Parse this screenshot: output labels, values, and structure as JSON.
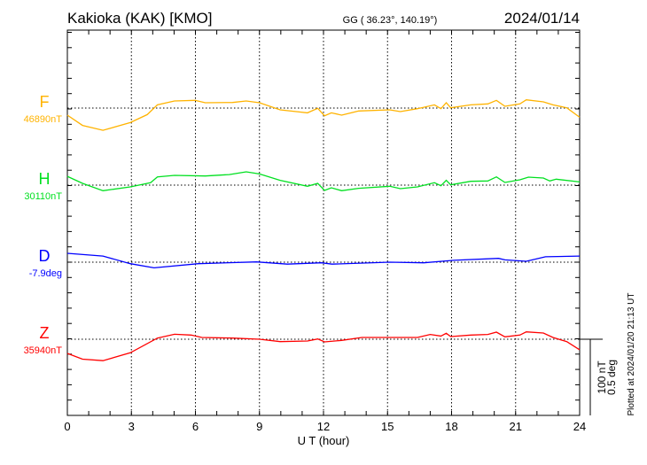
{
  "header": {
    "station": "Kakioka (KAK)  [KMO]",
    "coords": "GG ( 36.23°, 140.19°)",
    "date": "2024/01/14"
  },
  "footer": {
    "plotted": "Plotted at 2024/01/20 21:13 UT",
    "scale_nt": "100 nT",
    "scale_deg": "0.5 deg"
  },
  "chart_data": {
    "type": "line",
    "xlabel": "U T (hour)",
    "xlim": [
      0,
      24
    ],
    "xticks": [
      "0",
      "3",
      "6",
      "9",
      "12",
      "15",
      "18",
      "21",
      "24"
    ],
    "scale": {
      "nT_per_bar": 100,
      "deg_per_bar": 0.5
    },
    "grid": "dotted at every 3 hours and at each baseline",
    "series": [
      {
        "name": "F",
        "baseline_label": "46890nT",
        "unit": "nT",
        "color": "#ffb300",
        "x": [
          0,
          0.71,
          1.67,
          2.95,
          3.74,
          4.22,
          5.02,
          5.98,
          6.46,
          7.74,
          8.38,
          9.0,
          9.97,
          11.25,
          11.73,
          12.05,
          12.37,
          12.85,
          13.65,
          15.1,
          15.6,
          16.4,
          17.2,
          17.5,
          17.75,
          17.96,
          18.9,
          19.7,
          20.1,
          20.5,
          21.2,
          21.5,
          22.3,
          22.75,
          23.4,
          24
        ],
        "y": [
          -9.2,
          -22.7,
          -29,
          -19,
          -8.5,
          4.2,
          9.2,
          10,
          6.9,
          7.3,
          9.2,
          6.9,
          -2.3,
          -6.2,
          -0.4,
          -10,
          -6.2,
          -9.2,
          -3.8,
          -2.3,
          -4.6,
          -0.8,
          4.2,
          -0.8,
          6.9,
          0.4,
          4.2,
          5.4,
          10,
          2.3,
          5.4,
          10.8,
          8.1,
          4.2,
          0.4,
          -12
        ]
      },
      {
        "name": "H",
        "baseline_label": "30110nT",
        "unit": "nT",
        "color": "#00e020",
        "x": [
          0,
          0.71,
          1.67,
          2.95,
          3.9,
          4.22,
          5.02,
          6.46,
          7.58,
          8.38,
          9.0,
          9.97,
          11.25,
          11.73,
          12.05,
          12.37,
          12.85,
          13.65,
          15.1,
          15.6,
          16.4,
          17.2,
          17.5,
          17.75,
          17.96,
          18.9,
          19.7,
          20.1,
          20.5,
          21.2,
          21.6,
          22.3,
          22.6,
          22.9,
          24
        ],
        "y": [
          11.5,
          2.3,
          -7.3,
          -2.3,
          3.1,
          10.8,
          12.7,
          11.9,
          13.8,
          17.3,
          14.6,
          6.2,
          -1.5,
          2.3,
          -6.9,
          -3.5,
          -7.3,
          -4.2,
          -1.5,
          -4.6,
          -2.3,
          3.1,
          -0.8,
          6.2,
          0.4,
          5,
          5.4,
          10.8,
          3.5,
          6.9,
          10.4,
          9.2,
          5.4,
          7.7,
          4.2
        ]
      },
      {
        "name": "D",
        "baseline_label": "-7.9deg",
        "unit": "deg",
        "color": "#0000ff",
        "x": [
          0,
          1.67,
          2.95,
          4.06,
          6.14,
          8.86,
          10.3,
          11.9,
          12.4,
          15.1,
          16.7,
          18.1,
          20.2,
          20.5,
          21.5,
          22.4,
          24
        ],
        "y": [
          0.058,
          0.04,
          -0.01,
          -0.037,
          -0.01,
          0.002,
          -0.013,
          -0.004,
          -0.013,
          0,
          -0.004,
          0.012,
          0.025,
          0.015,
          0.006,
          0.035,
          0.04
        ]
      },
      {
        "name": "Z",
        "baseline_label": "35940nT",
        "unit": "nT",
        "color": "#ff0000",
        "x": [
          0,
          0.71,
          1.67,
          2.95,
          4.22,
          5.02,
          5.8,
          6.3,
          7.74,
          9.0,
          9.97,
          11.25,
          11.73,
          12.05,
          12.85,
          13.8,
          15.1,
          16.4,
          17.0,
          17.5,
          17.75,
          17.96,
          18.9,
          19.7,
          20.1,
          20.5,
          21.2,
          21.5,
          22.3,
          22.75,
          23.4,
          24
        ],
        "y": [
          -18.5,
          -26,
          -28,
          -17.7,
          1.5,
          6.5,
          5.4,
          2.3,
          1.5,
          0,
          -3.1,
          -2.3,
          0.4,
          -3.5,
          -1.5,
          2.3,
          2.3,
          2.3,
          6.2,
          4.2,
          7.7,
          3.5,
          5.4,
          6.2,
          9.2,
          3.1,
          5.4,
          9.6,
          8.1,
          2.3,
          -3.1,
          -13.8
        ]
      }
    ]
  }
}
